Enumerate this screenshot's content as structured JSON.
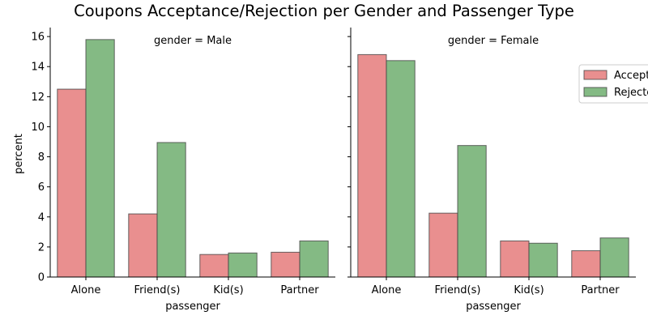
{
  "chart_data": {
    "type": "bar",
    "title": "Coupons Acceptance/Rejection per Gender and Passenger Type",
    "xlabel": "passenger",
    "ylabel": "percent",
    "categories": [
      "Alone",
      "Friend(s)",
      "Kid(s)",
      "Partner"
    ],
    "ylim": [
      0,
      16.6
    ],
    "yticks": [
      "0",
      "2",
      "4",
      "6",
      "8",
      "10",
      "12",
      "14",
      "16"
    ],
    "legend_placement": "right",
    "colors": {
      "Accepted": "#e05f5f",
      "Rejected": "#509d50"
    },
    "facets": [
      {
        "title": "gender = Male",
        "series": [
          {
            "name": "Accepted",
            "values": [
              12.5,
              4.2,
              1.5,
              1.65
            ]
          },
          {
            "name": "Rejected",
            "values": [
              15.8,
              8.95,
              1.6,
              2.4
            ]
          }
        ]
      },
      {
        "title": "gender = Female",
        "series": [
          {
            "name": "Accepted",
            "values": [
              14.8,
              4.25,
              2.4,
              1.75
            ]
          },
          {
            "name": "Rejected",
            "values": [
              14.4,
              8.75,
              2.25,
              2.6
            ]
          }
        ]
      }
    ],
    "legend": [
      "Accepted",
      "Rejected"
    ]
  }
}
